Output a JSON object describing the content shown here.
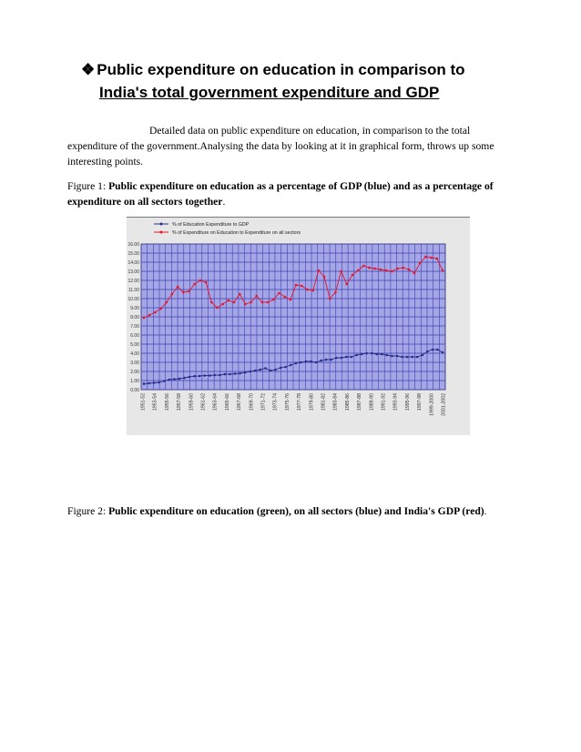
{
  "heading": {
    "bullet": "❖",
    "line1": "Public expenditure on education in comparison to",
    "line2": "India's total government expenditure and GDP"
  },
  "intro": "Detailed data on public expenditure on education, in comparison to the total expenditure of the government.Analysing the data by looking at it in graphical form, throws up some interesting points.",
  "figure1": {
    "prefix": "Figure 1: ",
    "caption": "Public expenditure on education as a percentage of GDP (blue) and as a percentage of expenditure on all sectors together",
    "suffix": "."
  },
  "figure2": {
    "prefix": "Figure 2: ",
    "caption": "Public expenditure on education (green), on all sectors (blue) and India's GDP (red)",
    "suffix": "."
  },
  "colors": {
    "plot_bg": "#a4a6e6",
    "grid": "#3f3fb0",
    "blue_series": "#2a2f8a",
    "red_series": "#e8142a",
    "frame_bg": "#e7e7e7"
  },
  "chart_data": {
    "type": "line",
    "title": "",
    "xlabel": "",
    "ylabel": "",
    "ylim": [
      0,
      16
    ],
    "yticks": [
      "16.00",
      "15.00",
      "14.00",
      "13.00",
      "12.00",
      "11.00",
      "10.00",
      "9.00",
      "8.00",
      "7.00",
      "6.00",
      "5.00",
      "4.00",
      "3.00",
      "2.00",
      "1.00",
      "0.00"
    ],
    "legend_position": "top",
    "grid": true,
    "x_labels": [
      "1951-52",
      "1953-54",
      "1955-56",
      "1957-58",
      "1959-60",
      "1961-62",
      "1963-64",
      "1965-66",
      "1967-68",
      "1969-70",
      "1971-72",
      "1973-74",
      "1975-76",
      "1977-78",
      "1979-80",
      "1981-82",
      "1983-84",
      "1985-86",
      "1987-88",
      "1989-90",
      "1991-92",
      "1993-94",
      "1995-96",
      "1997-98",
      "1999-2000",
      "2001-2002"
    ],
    "series": [
      {
        "name": "% of Education Expenditure to GDP",
        "color": "#2a2f8a",
        "values": [
          0.64,
          0.7,
          0.75,
          0.8,
          0.95,
          1.1,
          1.15,
          1.2,
          1.3,
          1.4,
          1.48,
          1.5,
          1.55,
          1.55,
          1.6,
          1.6,
          1.7,
          1.7,
          1.75,
          1.8,
          1.9,
          2.0,
          2.1,
          2.2,
          2.35,
          2.1,
          2.2,
          2.4,
          2.5,
          2.7,
          2.9,
          3.0,
          3.1,
          3.1,
          3.0,
          3.2,
          3.3,
          3.3,
          3.5,
          3.5,
          3.6,
          3.6,
          3.8,
          3.9,
          4.0,
          4.0,
          3.9,
          3.9,
          3.8,
          3.7,
          3.7,
          3.6,
          3.6,
          3.6,
          3.6,
          3.8,
          4.2,
          4.4,
          4.4,
          4.1
        ]
      },
      {
        "name": "% of Expenditure on Education to Expenditure on all sectors",
        "color": "#e8142a",
        "values": [
          7.9,
          8.2,
          8.5,
          8.9,
          9.6,
          10.5,
          11.3,
          10.7,
          10.8,
          11.6,
          12.0,
          11.8,
          9.6,
          9.0,
          9.4,
          9.8,
          9.6,
          10.5,
          9.4,
          9.6,
          10.3,
          9.6,
          9.6,
          9.9,
          10.6,
          10.2,
          9.9,
          11.5,
          11.4,
          11.0,
          10.9,
          13.1,
          12.4,
          10.0,
          10.7,
          13.0,
          11.6,
          12.6,
          13.1,
          13.6,
          13.4,
          13.3,
          13.2,
          13.1,
          13.0,
          13.3,
          13.4,
          13.2,
          12.8,
          13.9,
          14.6,
          14.5,
          14.4,
          13.1
        ]
      }
    ]
  }
}
